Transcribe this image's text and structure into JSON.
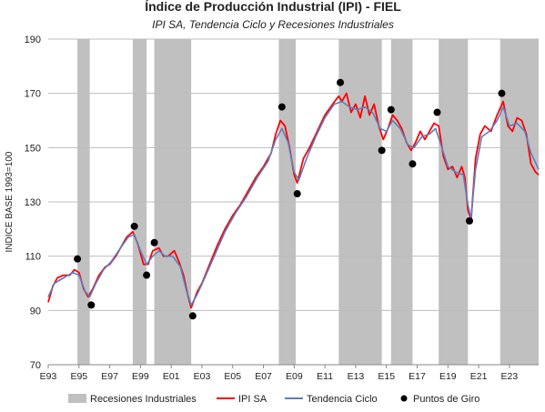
{
  "chart_data": {
    "type": "line",
    "title": "Índice de Producción Industrial (IPI) - FIEL",
    "subtitle": "IPI SA, Tendencia Ciclo y Recesiones Industriales",
    "ylabel": "INDICE BASE 1993=100",
    "xlabel": "",
    "ylim": [
      70,
      190
    ],
    "xlim": [
      1993.0,
      2024.9
    ],
    "yticks": [
      70,
      90,
      110,
      130,
      150,
      170,
      190
    ],
    "xticks": [
      {
        "label": "E93",
        "x": 1993
      },
      {
        "label": "E95",
        "x": 1995
      },
      {
        "label": "E97",
        "x": 1997
      },
      {
        "label": "E99",
        "x": 1999
      },
      {
        "label": "E01",
        "x": 2001
      },
      {
        "label": "E03",
        "x": 2003
      },
      {
        "label": "E05",
        "x": 2005
      },
      {
        "label": "E07",
        "x": 2007
      },
      {
        "label": "E09",
        "x": 2009
      },
      {
        "label": "E11",
        "x": 2011
      },
      {
        "label": "E13",
        "x": 2013
      },
      {
        "label": "E15",
        "x": 2015
      },
      {
        "label": "E17",
        "x": 2017
      },
      {
        "label": "E19",
        "x": 2019
      },
      {
        "label": "E21",
        "x": 2021
      },
      {
        "label": "E23",
        "x": 2023
      }
    ],
    "grid": "horizontal",
    "legend_position": "bottom",
    "recessions": [
      [
        1994.9,
        1995.7
      ],
      [
        1998.5,
        1999.4
      ],
      [
        1999.9,
        2002.3
      ],
      [
        2008.0,
        2009.1
      ],
      [
        2011.9,
        2014.7
      ],
      [
        2015.3,
        2016.7
      ],
      [
        2018.4,
        2020.3
      ],
      [
        2022.4,
        2024.9
      ]
    ],
    "series": [
      {
        "name": "IPI SA",
        "color": "#ff0000",
        "points": [
          [
            1993.0,
            93
          ],
          [
            1993.3,
            99
          ],
          [
            1993.6,
            102
          ],
          [
            1994.0,
            103
          ],
          [
            1994.4,
            103
          ],
          [
            1994.7,
            105
          ],
          [
            1995.0,
            104
          ],
          [
            1995.3,
            98
          ],
          [
            1995.6,
            95
          ],
          [
            1995.9,
            98
          ],
          [
            1996.3,
            103
          ],
          [
            1996.7,
            106
          ],
          [
            1997.0,
            107
          ],
          [
            1997.4,
            110
          ],
          [
            1997.8,
            114
          ],
          [
            1998.1,
            117
          ],
          [
            1998.5,
            119
          ],
          [
            1998.8,
            115
          ],
          [
            1999.2,
            107
          ],
          [
            1999.5,
            107
          ],
          [
            1999.8,
            112
          ],
          [
            2000.2,
            113
          ],
          [
            2000.5,
            110
          ],
          [
            2000.8,
            110
          ],
          [
            2001.2,
            112
          ],
          [
            2001.5,
            108
          ],
          [
            2001.8,
            103
          ],
          [
            2002.1,
            95
          ],
          [
            2002.3,
            91
          ],
          [
            2002.7,
            97
          ],
          [
            2003.0,
            100
          ],
          [
            2003.5,
            107
          ],
          [
            2004.0,
            114
          ],
          [
            2004.5,
            120
          ],
          [
            2005.0,
            125
          ],
          [
            2005.5,
            129
          ],
          [
            2006.0,
            134
          ],
          [
            2006.5,
            139
          ],
          [
            2007.0,
            143
          ],
          [
            2007.5,
            148
          ],
          [
            2007.8,
            155
          ],
          [
            2008.1,
            160
          ],
          [
            2008.4,
            158
          ],
          [
            2008.7,
            150
          ],
          [
            2009.0,
            140
          ],
          [
            2009.2,
            137
          ],
          [
            2009.6,
            146
          ],
          [
            2010.0,
            150
          ],
          [
            2010.5,
            156
          ],
          [
            2011.0,
            162
          ],
          [
            2011.5,
            166
          ],
          [
            2011.9,
            169
          ],
          [
            2012.1,
            167
          ],
          [
            2012.4,
            170
          ],
          [
            2012.7,
            163
          ],
          [
            2013.0,
            166
          ],
          [
            2013.3,
            161
          ],
          [
            2013.6,
            169
          ],
          [
            2013.9,
            162
          ],
          [
            2014.2,
            166
          ],
          [
            2014.5,
            158
          ],
          [
            2014.8,
            153
          ],
          [
            2015.1,
            157
          ],
          [
            2015.4,
            162
          ],
          [
            2015.7,
            160
          ],
          [
            2016.0,
            157
          ],
          [
            2016.3,
            152
          ],
          [
            2016.6,
            149
          ],
          [
            2016.9,
            152
          ],
          [
            2017.2,
            156
          ],
          [
            2017.5,
            153
          ],
          [
            2017.8,
            156
          ],
          [
            2018.1,
            159
          ],
          [
            2018.4,
            158
          ],
          [
            2018.7,
            147
          ],
          [
            2019.0,
            142
          ],
          [
            2019.3,
            143
          ],
          [
            2019.6,
            139
          ],
          [
            2019.9,
            143
          ],
          [
            2020.1,
            139
          ],
          [
            2020.3,
            127
          ],
          [
            2020.5,
            123
          ],
          [
            2020.8,
            146
          ],
          [
            2021.1,
            155
          ],
          [
            2021.4,
            158
          ],
          [
            2021.8,
            156
          ],
          [
            2022.2,
            162
          ],
          [
            2022.6,
            167
          ],
          [
            2022.9,
            158
          ],
          [
            2023.2,
            156
          ],
          [
            2023.5,
            161
          ],
          [
            2023.8,
            160
          ],
          [
            2024.1,
            155
          ],
          [
            2024.4,
            144
          ],
          [
            2024.7,
            141
          ],
          [
            2024.9,
            140
          ]
        ]
      },
      {
        "name": "Tendencia Ciclo",
        "color": "#5b7fbf",
        "points": [
          [
            1993.0,
            95
          ],
          [
            1993.4,
            100
          ],
          [
            1994.0,
            102
          ],
          [
            1994.6,
            104
          ],
          [
            1995.0,
            103
          ],
          [
            1995.4,
            97
          ],
          [
            1995.7,
            95
          ],
          [
            1996.1,
            100
          ],
          [
            1996.6,
            105
          ],
          [
            1997.1,
            108
          ],
          [
            1997.7,
            113
          ],
          [
            1998.2,
            117
          ],
          [
            1998.6,
            118
          ],
          [
            1999.0,
            112
          ],
          [
            1999.4,
            107
          ],
          [
            1999.8,
            110
          ],
          [
            2000.2,
            112
          ],
          [
            2000.6,
            110
          ],
          [
            2001.1,
            110
          ],
          [
            2001.6,
            106
          ],
          [
            2002.0,
            97
          ],
          [
            2002.3,
            92
          ],
          [
            2002.7,
            96
          ],
          [
            2003.1,
            101
          ],
          [
            2003.8,
            110
          ],
          [
            2004.5,
            119
          ],
          [
            2005.2,
            126
          ],
          [
            2005.9,
            132
          ],
          [
            2006.6,
            139
          ],
          [
            2007.3,
            145
          ],
          [
            2007.8,
            153
          ],
          [
            2008.2,
            157
          ],
          [
            2008.6,
            152
          ],
          [
            2009.0,
            141
          ],
          [
            2009.3,
            138
          ],
          [
            2009.8,
            146
          ],
          [
            2010.4,
            154
          ],
          [
            2011.0,
            161
          ],
          [
            2011.6,
            166
          ],
          [
            2012.1,
            167
          ],
          [
            2012.6,
            165
          ],
          [
            2013.1,
            164
          ],
          [
            2013.6,
            165
          ],
          [
            2014.1,
            163
          ],
          [
            2014.6,
            157
          ],
          [
            2015.0,
            156
          ],
          [
            2015.4,
            160
          ],
          [
            2015.9,
            157
          ],
          [
            2016.4,
            151
          ],
          [
            2016.8,
            150
          ],
          [
            2017.3,
            154
          ],
          [
            2017.8,
            155
          ],
          [
            2018.2,
            157
          ],
          [
            2018.6,
            150
          ],
          [
            2019.0,
            143
          ],
          [
            2019.5,
            141
          ],
          [
            2020.0,
            140
          ],
          [
            2020.3,
            129
          ],
          [
            2020.5,
            124
          ],
          [
            2020.8,
            142
          ],
          [
            2021.2,
            154
          ],
          [
            2021.7,
            156
          ],
          [
            2022.2,
            160
          ],
          [
            2022.6,
            165
          ],
          [
            2023.0,
            158
          ],
          [
            2023.5,
            159
          ],
          [
            2024.0,
            156
          ],
          [
            2024.4,
            148
          ],
          [
            2024.9,
            142
          ]
        ]
      }
    ],
    "turning_points": [
      [
        1994.9,
        109
      ],
      [
        1995.8,
        92
      ],
      [
        1998.6,
        121
      ],
      [
        1999.4,
        103
      ],
      [
        1999.9,
        115
      ],
      [
        2002.4,
        88
      ],
      [
        2008.2,
        165
      ],
      [
        2009.2,
        133
      ],
      [
        2012.0,
        174
      ],
      [
        2014.7,
        149
      ],
      [
        2015.3,
        164
      ],
      [
        2016.7,
        144
      ],
      [
        2018.3,
        163
      ],
      [
        2020.4,
        123
      ],
      [
        2022.5,
        170
      ]
    ],
    "legend": [
      {
        "label": "Recesiones Industriales",
        "kind": "bar",
        "color": "#c0c0c0"
      },
      {
        "label": "IPI SA",
        "kind": "line",
        "color": "#ff0000"
      },
      {
        "label": "Tendencia Ciclo",
        "kind": "line",
        "color": "#5b7fbf"
      },
      {
        "label": "Puntos de Giro",
        "kind": "dot",
        "color": "#000000"
      }
    ]
  }
}
